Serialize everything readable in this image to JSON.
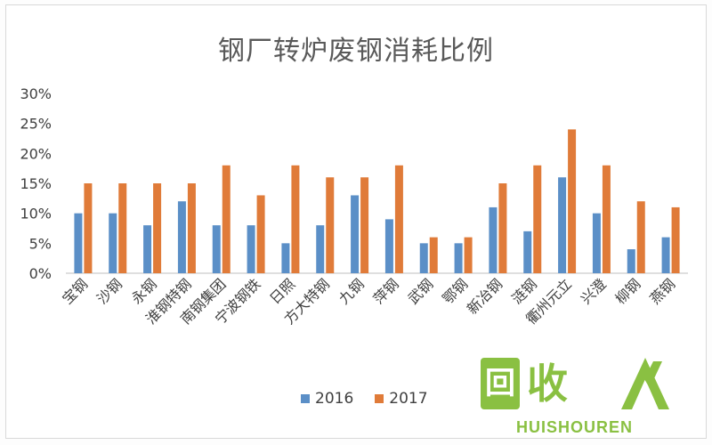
{
  "chart_data": {
    "type": "bar",
    "title": "钢厂转炉废钢消耗比例",
    "categories": [
      "宝钢",
      "沙钢",
      "永钢",
      "淮钢特钢",
      "南钢集团",
      "宁波钢铁",
      "日照",
      "方大特钢",
      "九钢",
      "萍钢",
      "武钢",
      "鄂钢",
      "新冶钢",
      "涟钢",
      "衢州元立",
      "兴澄",
      "柳钢",
      "燕钢"
    ],
    "series": [
      {
        "name": "2016",
        "color": "#5b8fc7",
        "values": [
          10,
          10,
          8,
          12,
          8,
          8,
          5,
          8,
          13,
          9,
          5,
          5,
          11,
          7,
          16,
          10,
          4,
          6
        ]
      },
      {
        "name": "2017",
        "color": "#e07b39",
        "values": [
          15,
          15,
          15,
          15,
          18,
          13,
          18,
          16,
          16,
          18,
          6,
          6,
          15,
          18,
          24,
          18,
          12,
          11
        ]
      }
    ],
    "ylim": [
      0,
      30
    ],
    "yticks": [
      "0%",
      "5%",
      "10%",
      "15%",
      "20%",
      "25%",
      "30%"
    ],
    "grid": false,
    "legend": "bottom"
  },
  "watermark": {
    "glyph1": "回",
    "glyph2": "收",
    "text": "HUISHOUREN"
  }
}
